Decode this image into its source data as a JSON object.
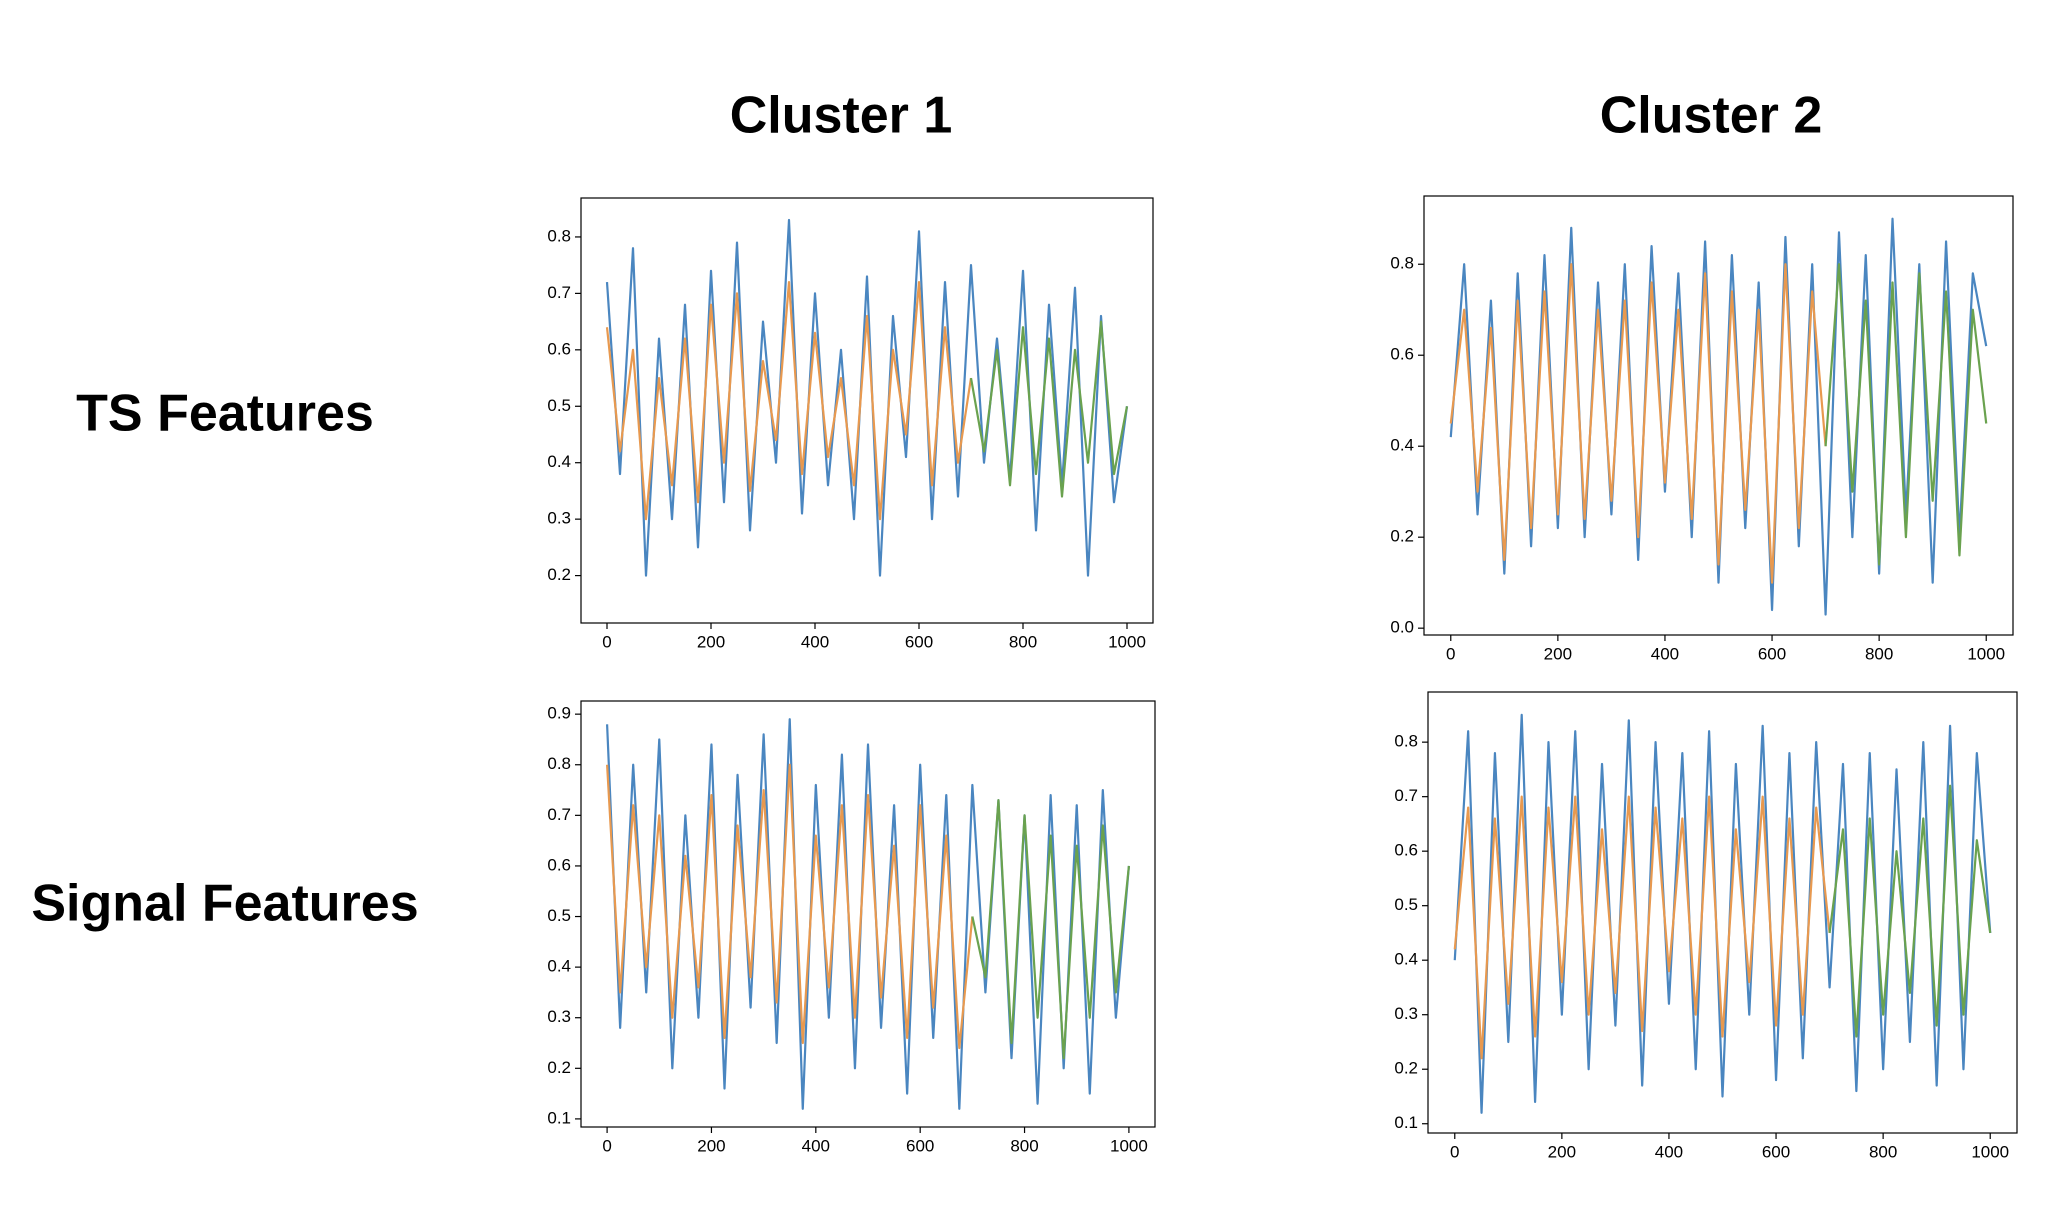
{
  "column_titles": [
    "Cluster 1",
    "Cluster 2"
  ],
  "row_titles": [
    "TS Features",
    "Signal Features"
  ],
  "chart_data": [
    {
      "type": "line",
      "x": [
        0,
        25,
        50,
        75,
        100,
        125,
        150,
        175,
        200,
        225,
        250,
        275,
        300,
        325,
        350,
        375,
        400,
        425,
        450,
        475,
        500,
        525,
        550,
        575,
        600,
        625,
        650,
        675,
        700,
        725,
        750,
        775,
        800,
        825,
        850,
        875,
        900,
        925,
        950,
        975,
        1000
      ],
      "series": [
        {
          "color": "#4a86c0",
          "values": [
            0.72,
            0.38,
            0.78,
            0.2,
            0.62,
            0.3,
            0.68,
            0.25,
            0.74,
            0.33,
            0.79,
            0.28,
            0.65,
            0.4,
            0.83,
            0.31,
            0.7,
            0.36,
            0.6,
            0.3,
            0.73,
            0.2,
            0.66,
            0.41,
            0.81,
            0.3,
            0.72,
            0.34,
            0.75,
            0.4,
            0.62,
            0.37,
            0.74,
            0.28,
            0.68,
            0.36,
            0.71,
            0.2,
            0.66,
            0.33,
            0.5
          ]
        },
        {
          "color": "#e8994f",
          "values": [
            0.64,
            0.42,
            0.6,
            0.3,
            0.55,
            0.36,
            0.62,
            0.33,
            0.68,
            0.4,
            0.7,
            0.35,
            0.58,
            0.44,
            0.72,
            0.38,
            0.63,
            0.41,
            0.55,
            0.36,
            0.66,
            0.3,
            0.6,
            0.45,
            0.72,
            0.36,
            0.64,
            0.4,
            0.55,
            null,
            null,
            null,
            null,
            null,
            null,
            null,
            null,
            null,
            null,
            null,
            null
          ]
        },
        {
          "color": "#6aa24f",
          "values": [
            null,
            null,
            null,
            null,
            null,
            null,
            null,
            null,
            null,
            null,
            null,
            null,
            null,
            null,
            null,
            null,
            null,
            null,
            null,
            null,
            null,
            null,
            null,
            null,
            null,
            null,
            null,
            null,
            0.55,
            0.42,
            0.6,
            0.36,
            0.64,
            0.38,
            0.62,
            0.34,
            0.6,
            0.4,
            0.65,
            0.38,
            0.5
          ]
        }
      ],
      "xlim": [
        -50,
        1050
      ],
      "ylim": [
        0.116,
        0.869
      ],
      "xticks": [
        0,
        200,
        400,
        600,
        800,
        1000
      ],
      "yticks": [
        0.2,
        0.3,
        0.4,
        0.5,
        0.6,
        0.7,
        0.8
      ]
    },
    {
      "type": "line",
      "x": [
        0,
        25,
        50,
        75,
        100,
        125,
        150,
        175,
        200,
        225,
        250,
        275,
        300,
        325,
        350,
        375,
        400,
        425,
        450,
        475,
        500,
        525,
        550,
        575,
        600,
        625,
        650,
        675,
        700,
        725,
        750,
        775,
        800,
        825,
        850,
        875,
        900,
        925,
        950,
        975,
        1000
      ],
      "series": [
        {
          "color": "#4a86c0",
          "values": [
            0.42,
            0.8,
            0.25,
            0.72,
            0.12,
            0.78,
            0.18,
            0.82,
            0.22,
            0.88,
            0.2,
            0.76,
            0.25,
            0.8,
            0.15,
            0.84,
            0.3,
            0.78,
            0.2,
            0.85,
            0.1,
            0.82,
            0.22,
            0.76,
            0.04,
            0.86,
            0.18,
            0.8,
            0.03,
            0.87,
            0.2,
            0.82,
            0.12,
            0.9,
            0.25,
            0.8,
            0.1,
            0.85,
            0.2,
            0.78,
            0.62
          ]
        },
        {
          "color": "#e8994f",
          "values": [
            0.45,
            0.7,
            0.3,
            0.66,
            0.15,
            0.72,
            0.22,
            0.74,
            0.25,
            0.8,
            0.24,
            0.7,
            0.28,
            0.72,
            0.2,
            0.76,
            0.32,
            0.7,
            0.24,
            0.78,
            0.14,
            0.74,
            0.26,
            0.7,
            0.1,
            0.8,
            0.22,
            0.74,
            0.4,
            null,
            null,
            null,
            null,
            null,
            null,
            null,
            null,
            null,
            null,
            null,
            null
          ]
        },
        {
          "color": "#6aa24f",
          "values": [
            null,
            null,
            null,
            null,
            null,
            null,
            null,
            null,
            null,
            null,
            null,
            null,
            null,
            null,
            null,
            null,
            null,
            null,
            null,
            null,
            null,
            null,
            null,
            null,
            null,
            null,
            null,
            null,
            0.4,
            0.8,
            0.3,
            0.72,
            0.14,
            0.76,
            0.2,
            0.78,
            0.28,
            0.74,
            0.16,
            0.7,
            0.45
          ]
        }
      ],
      "xlim": [
        -50,
        1050
      ],
      "ylim": [
        -0.015,
        0.95
      ],
      "xticks": [
        0,
        200,
        400,
        600,
        800,
        1000
      ],
      "yticks": [
        {
          "value": 0,
          "label": "0.0"
        },
        0.2,
        0.4,
        0.6,
        0.8
      ]
    },
    {
      "type": "line",
      "x": [
        0,
        25,
        50,
        75,
        100,
        125,
        150,
        175,
        200,
        225,
        250,
        275,
        300,
        325,
        350,
        375,
        400,
        425,
        450,
        475,
        500,
        525,
        550,
        575,
        600,
        625,
        650,
        675,
        700,
        725,
        750,
        775,
        800,
        825,
        850,
        875,
        900,
        925,
        950,
        975,
        1000
      ],
      "series": [
        {
          "color": "#4a86c0",
          "values": [
            0.88,
            0.28,
            0.8,
            0.35,
            0.85,
            0.2,
            0.7,
            0.3,
            0.84,
            0.16,
            0.78,
            0.32,
            0.86,
            0.25,
            0.89,
            0.12,
            0.76,
            0.3,
            0.82,
            0.2,
            0.84,
            0.28,
            0.72,
            0.15,
            0.8,
            0.26,
            0.74,
            0.12,
            0.76,
            0.35,
            0.73,
            0.22,
            0.7,
            0.13,
            0.74,
            0.2,
            0.72,
            0.15,
            0.75,
            0.3,
            0.6
          ]
        },
        {
          "color": "#e8994f",
          "values": [
            0.8,
            0.35,
            0.72,
            0.4,
            0.7,
            0.3,
            0.62,
            0.36,
            0.74,
            0.26,
            0.68,
            0.38,
            0.75,
            0.33,
            0.8,
            0.25,
            0.66,
            0.36,
            0.72,
            0.3,
            0.74,
            0.34,
            0.64,
            0.26,
            0.72,
            0.32,
            0.66,
            0.24,
            0.5,
            null,
            null,
            null,
            null,
            null,
            null,
            null,
            null,
            null,
            null,
            null,
            null
          ]
        },
        {
          "color": "#6aa24f",
          "values": [
            null,
            null,
            null,
            null,
            null,
            null,
            null,
            null,
            null,
            null,
            null,
            null,
            null,
            null,
            null,
            null,
            null,
            null,
            null,
            null,
            null,
            null,
            null,
            null,
            null,
            null,
            null,
            null,
            0.5,
            0.38,
            0.73,
            0.25,
            0.7,
            0.3,
            0.66,
            0.22,
            0.64,
            0.3,
            0.68,
            0.35,
            0.6
          ]
        }
      ],
      "xlim": [
        -50,
        1050
      ],
      "ylim": [
        0.084,
        0.926
      ],
      "xticks": [
        0,
        200,
        400,
        600,
        800,
        1000
      ],
      "yticks": [
        0.1,
        0.2,
        0.3,
        0.4,
        0.5,
        0.6,
        0.7,
        0.8,
        0.9
      ]
    },
    {
      "type": "line",
      "x": [
        0,
        25,
        50,
        75,
        100,
        125,
        150,
        175,
        200,
        225,
        250,
        275,
        300,
        325,
        350,
        375,
        400,
        425,
        450,
        475,
        500,
        525,
        550,
        575,
        600,
        625,
        650,
        675,
        700,
        725,
        750,
        775,
        800,
        825,
        850,
        875,
        900,
        925,
        950,
        975,
        1000
      ],
      "series": [
        {
          "color": "#4a86c0",
          "values": [
            0.4,
            0.82,
            0.12,
            0.78,
            0.25,
            0.85,
            0.14,
            0.8,
            0.3,
            0.82,
            0.2,
            0.76,
            0.28,
            0.84,
            0.17,
            0.8,
            0.32,
            0.78,
            0.2,
            0.82,
            0.15,
            0.76,
            0.3,
            0.83,
            0.18,
            0.78,
            0.22,
            0.8,
            0.35,
            0.76,
            0.16,
            0.78,
            0.2,
            0.75,
            0.25,
            0.8,
            0.17,
            0.83,
            0.2,
            0.78,
            0.45
          ]
        },
        {
          "color": "#e8994f",
          "values": [
            0.42,
            0.68,
            0.22,
            0.66,
            0.32,
            0.7,
            0.26,
            0.68,
            0.36,
            0.7,
            0.3,
            0.64,
            0.34,
            0.7,
            0.27,
            0.68,
            0.38,
            0.66,
            0.3,
            0.7,
            0.26,
            0.64,
            0.36,
            0.7,
            0.28,
            0.66,
            0.3,
            0.68,
            0.45,
            null,
            null,
            null,
            null,
            null,
            null,
            null,
            null,
            null,
            null,
            null,
            null
          ]
        },
        {
          "color": "#6aa24f",
          "values": [
            null,
            null,
            null,
            null,
            null,
            null,
            null,
            null,
            null,
            null,
            null,
            null,
            null,
            null,
            null,
            null,
            null,
            null,
            null,
            null,
            null,
            null,
            null,
            null,
            null,
            null,
            null,
            null,
            0.45,
            0.64,
            0.26,
            0.66,
            0.3,
            0.6,
            0.34,
            0.66,
            0.28,
            0.72,
            0.3,
            0.62,
            0.45
          ]
        }
      ],
      "xlim": [
        -50,
        1050
      ],
      "ylim": [
        0.083,
        0.892
      ],
      "xticks": [
        0,
        200,
        400,
        600,
        800,
        1000
      ],
      "yticks": [
        0.1,
        0.2,
        0.3,
        0.4,
        0.5,
        0.6,
        0.7,
        0.8
      ]
    }
  ]
}
